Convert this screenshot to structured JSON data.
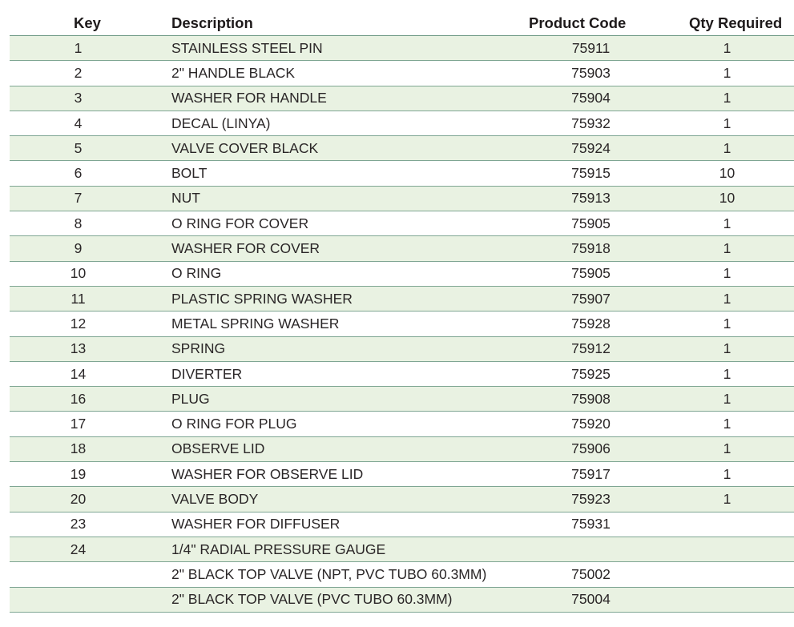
{
  "table": {
    "headers": {
      "key": "Key",
      "description": "Description",
      "product_code": "Product Code",
      "qty_required": "Qty Required"
    },
    "rows": [
      {
        "key": "1",
        "description": "STAINLESS STEEL PIN",
        "product_code": "75911",
        "qty": "1"
      },
      {
        "key": "2",
        "description": "2\" HANDLE BLACK",
        "product_code": "75903",
        "qty": "1"
      },
      {
        "key": "3",
        "description": "WASHER FOR HANDLE",
        "product_code": "75904",
        "qty": "1"
      },
      {
        "key": "4",
        "description": "DECAL (LINYA)",
        "product_code": "75932",
        "qty": "1"
      },
      {
        "key": "5",
        "description": "VALVE COVER BLACK",
        "product_code": "75924",
        "qty": "1"
      },
      {
        "key": "6",
        "description": "BOLT",
        "product_code": "75915",
        "qty": "10"
      },
      {
        "key": "7",
        "description": "NUT",
        "product_code": "75913",
        "qty": "10"
      },
      {
        "key": "8",
        "description": "O RING FOR COVER",
        "product_code": "75905",
        "qty": "1"
      },
      {
        "key": "9",
        "description": "WASHER FOR COVER",
        "product_code": "75918",
        "qty": "1"
      },
      {
        "key": "10",
        "description": "O RING",
        "product_code": "75905",
        "qty": "1"
      },
      {
        "key": "11",
        "description": "PLASTIC SPRING WASHER",
        "product_code": "75907",
        "qty": "1"
      },
      {
        "key": "12",
        "description": "METAL SPRING WASHER",
        "product_code": "75928",
        "qty": "1"
      },
      {
        "key": "13",
        "description": "SPRING",
        "product_code": "75912",
        "qty": "1"
      },
      {
        "key": "14",
        "description": "DIVERTER",
        "product_code": "75925",
        "qty": "1"
      },
      {
        "key": "16",
        "description": "PLUG",
        "product_code": "75908",
        "qty": "1"
      },
      {
        "key": "17",
        "description": "O RING FOR PLUG",
        "product_code": "75920",
        "qty": "1"
      },
      {
        "key": "18",
        "description": "OBSERVE LID",
        "product_code": "75906",
        "qty": "1"
      },
      {
        "key": "19",
        "description": "WASHER FOR OBSERVE LID",
        "product_code": "75917",
        "qty": "1"
      },
      {
        "key": "20",
        "description": "VALVE BODY",
        "product_code": "75923",
        "qty": "1"
      },
      {
        "key": "23",
        "description": "WASHER FOR DIFFUSER",
        "product_code": "75931",
        "qty": ""
      },
      {
        "key": "24",
        "description": "1/4\" RADIAL PRESSURE GAUGE",
        "product_code": "",
        "qty": ""
      },
      {
        "key": "",
        "description": "2\" BLACK TOP VALVE (NPT, PVC TUBO 60.3MM)",
        "product_code": "75002",
        "qty": ""
      },
      {
        "key": "",
        "description": "2\" BLACK TOP VALVE (PVC TUBO 60.3MM)",
        "product_code": "75004",
        "qty": ""
      }
    ]
  },
  "colors": {
    "shaded_row": "#e9f2e2",
    "rule": "#7fa693",
    "text": "#231f20"
  }
}
